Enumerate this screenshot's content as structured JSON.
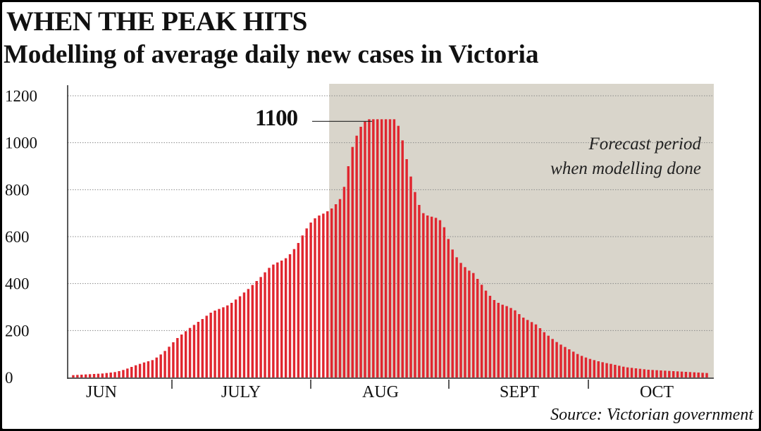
{
  "header": {
    "title": "WHEN THE PEAK HITS",
    "subtitle": "Modelling of average daily new cases in Victoria"
  },
  "footer": {
    "source": "Source: Victorian government"
  },
  "colors": {
    "bar": "#e0262f",
    "forecast_shade": "#d9d5cb",
    "grid": "#8a8a8a",
    "axis": "#222222",
    "text": "#111111"
  },
  "chart_data": {
    "type": "bar",
    "title": "",
    "xlabel": "",
    "ylabel": "",
    "ylim": [
      0,
      1200
    ],
    "yticks": [
      0,
      200,
      400,
      600,
      800,
      1000,
      1200
    ],
    "grid": true,
    "months": [
      "JUN",
      "JULY",
      "AUG",
      "SEPT",
      "OCT"
    ],
    "forecast_label": [
      "Forecast period",
      "when modelling done"
    ],
    "forecast_start_index": 62,
    "peak": {
      "value": 1100,
      "label": "1100"
    },
    "values": [
      10,
      11,
      12,
      13,
      14,
      15,
      16,
      17,
      19,
      21,
      23,
      27,
      32,
      38,
      45,
      52,
      58,
      64,
      69,
      74,
      85,
      98,
      113,
      131,
      150,
      168,
      183,
      197,
      211,
      224,
      237,
      249,
      263,
      276,
      285,
      292,
      299,
      307,
      318,
      332,
      346,
      362,
      377,
      394,
      411,
      428,
      448,
      467,
      481,
      490,
      498,
      508,
      525,
      547,
      573,
      605,
      635,
      660,
      678,
      690,
      698,
      708,
      720,
      738,
      760,
      812,
      900,
      982,
      1030,
      1068,
      1090,
      1100,
      1100,
      1100,
      1100,
      1100,
      1100,
      1100,
      1072,
      1010,
      930,
      856,
      790,
      735,
      700,
      690,
      685,
      680,
      670,
      640,
      590,
      545,
      512,
      488,
      470,
      455,
      445,
      420,
      395,
      370,
      348,
      330,
      318,
      310,
      304,
      296,
      286,
      270,
      255,
      245,
      236,
      226,
      210,
      193,
      178,
      164,
      151,
      140,
      130,
      120,
      110,
      100,
      92,
      85,
      79,
      74,
      69,
      65,
      61,
      58,
      54,
      50,
      46,
      43,
      41,
      39,
      37,
      35,
      33,
      32,
      31,
      30,
      29,
      28,
      27,
      26,
      25,
      24,
      23,
      22,
      21,
      20,
      19
    ]
  }
}
